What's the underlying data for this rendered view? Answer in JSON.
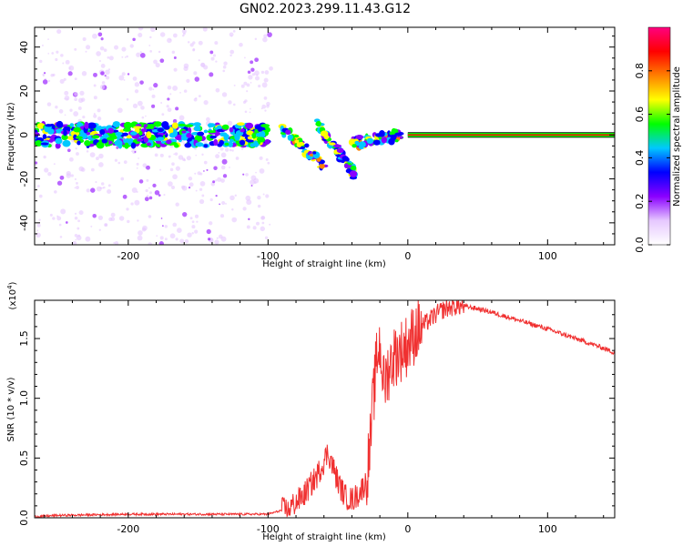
{
  "title": "GN02.2023.299.11.43.G12",
  "spectrogram": {
    "type": "heatmap",
    "xlabel": "Height of straight line (km)",
    "ylabel": "Frequency (Hz)",
    "xlim": [
      -267,
      148
    ],
    "ylim": [
      -50,
      49
    ],
    "xticks": [
      "-200",
      "-100",
      "0",
      "100"
    ],
    "xtick_values": [
      -200,
      -100,
      0,
      100
    ],
    "yticks": [
      "40",
      "20",
      "0",
      "-20",
      "-40"
    ],
    "ytick_values": [
      40,
      20,
      0,
      -20,
      -40
    ],
    "colorbar": {
      "label": "Normalized spectral amplitude",
      "range": [
        0,
        1
      ],
      "ticks": [
        "0.0",
        "0.2",
        "0.4",
        "0.6",
        "0.8"
      ],
      "tick_values": [
        0,
        0.2,
        0.4,
        0.6,
        0.8
      ],
      "colormap": [
        "#ffffff",
        "#e6c8ff",
        "#8a00ff",
        "#0000ff",
        "#00c8ff",
        "#00ff00",
        "#ffff00",
        "#ff8000",
        "#ff0000",
        "#ff0080"
      ]
    },
    "features": [
      {
        "name": "noise-band",
        "x_range": [
          -267,
          -100
        ],
        "freq_center": 0,
        "freq_halfwidth": 5
      },
      {
        "name": "descending-arc",
        "x_range": [
          -90,
          -58
        ],
        "freq_start": 3,
        "freq_end": -15
      },
      {
        "name": "descending-arc",
        "x_range": [
          -65,
          -38
        ],
        "freq_start": 5,
        "freq_end": -18
      },
      {
        "name": "converging-signal",
        "x_range": [
          -40,
          -5
        ],
        "freq_start": -4,
        "freq_end": 0
      },
      {
        "name": "steady-line",
        "x_range": [
          0,
          148
        ],
        "freq_center": 0
      }
    ]
  },
  "snr": {
    "type": "line",
    "xlabel": "Height of straight line (km)",
    "ylabel": "SNR (10 * v/v)",
    "scale_label": "(x10",
    "scale_exp": "4",
    "scale_close": ")",
    "xlim": [
      -267,
      148
    ],
    "ylim": [
      0,
      1.82
    ],
    "xticks": [
      "-200",
      "-100",
      "0",
      "100"
    ],
    "xtick_values": [
      -200,
      -100,
      0,
      100
    ],
    "yticks": [
      "0.0",
      "0.5",
      "1.0",
      "1.5"
    ],
    "ytick_values": [
      0,
      0.5,
      1.0,
      1.5
    ],
    "color": "#f03030",
    "series": [
      {
        "x": [
          -267,
          -250,
          -200,
          -150,
          -120,
          -100,
          -85,
          -75,
          -65,
          -57,
          -50,
          -45,
          -40,
          -35,
          -30,
          -27,
          -25,
          -22,
          -20,
          -17,
          -15,
          -12,
          -10,
          -5,
          0,
          5,
          10,
          15,
          20,
          25,
          30,
          35,
          40,
          45,
          50,
          60,
          80,
          100,
          120,
          140,
          148
        ],
        "y": [
          0.01,
          0.02,
          0.03,
          0.03,
          0.03,
          0.03,
          0.08,
          0.18,
          0.35,
          0.55,
          0.3,
          0.18,
          0.15,
          0.2,
          0.3,
          0.6,
          0.95,
          1.35,
          1.45,
          1.1,
          1.2,
          1.3,
          1.35,
          1.4,
          1.45,
          1.55,
          1.6,
          1.65,
          1.7,
          1.74,
          1.76,
          1.77,
          1.77,
          1.76,
          1.75,
          1.72,
          1.65,
          1.58,
          1.5,
          1.42,
          1.38
        ]
      }
    ]
  }
}
